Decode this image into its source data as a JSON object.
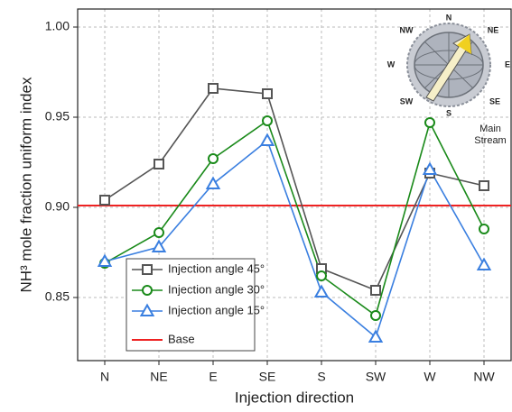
{
  "chart_data": {
    "type": "line",
    "x_label": "Injection direction",
    "y_label": "NH³ mole fraction uniform index",
    "categories": [
      "N",
      "NE",
      "E",
      "SE",
      "S",
      "SW",
      "W",
      "NW"
    ],
    "series": [
      {
        "name": "Injection angle 45°",
        "color": "#555555",
        "marker": "square",
        "values": [
          0.904,
          0.924,
          0.966,
          0.963,
          0.866,
          0.854,
          0.919,
          0.912
        ]
      },
      {
        "name": "Injection angle 30°",
        "color": "#1a8a1a",
        "marker": "circle",
        "values": [
          0.869,
          0.886,
          0.927,
          0.948,
          0.862,
          0.84,
          0.947,
          0.888
        ]
      },
      {
        "name": "Injection angle 15°",
        "color": "#3a7fe0",
        "marker": "triangle",
        "values": [
          0.87,
          0.878,
          0.913,
          0.937,
          0.853,
          0.828,
          0.921,
          0.868
        ]
      }
    ],
    "base": {
      "name": "Base",
      "value": 0.901,
      "color": "#ee2222"
    },
    "ylim": [
      0.815,
      1.01
    ],
    "yticks": [
      0.85,
      {
        "value": 0.9,
        "label": "0.90"
      },
      0.95,
      {
        "value": 1,
        "label": "1.00"
      }
    ],
    "grid": true,
    "legend": "lower-left",
    "inset_caption": [
      "Main",
      "Stream"
    ]
  }
}
